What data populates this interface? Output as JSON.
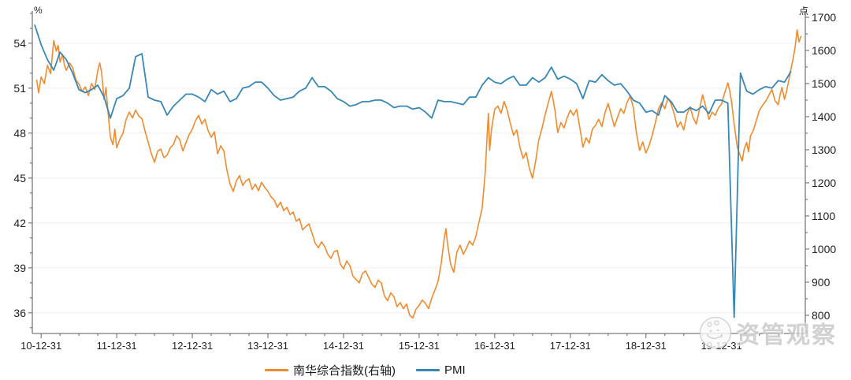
{
  "chart_data": {
    "type": "line",
    "title": "",
    "background": "#ffffff",
    "grid": "horizontal-light",
    "grid_color": "#efefef",
    "axis_color": "#7a7a7a",
    "tick_label_color": "#1f1f1f",
    "left_axis": {
      "unit_label": "%",
      "ticks": [
        36,
        39,
        42,
        45,
        48,
        51,
        54
      ],
      "minor_step": 1,
      "range": [
        34.62,
        56.15
      ]
    },
    "right_axis": {
      "unit_label": "点",
      "ticks": [
        800,
        900,
        1000,
        1100,
        1200,
        1300,
        1400,
        1500,
        1600,
        1700
      ],
      "minor_step": 50,
      "range": [
        745,
        1719
      ]
    },
    "x_axis": {
      "unit": "months since 2010-12-31",
      "range": [
        -1.4,
        121.3
      ],
      "minor_step_months": 3,
      "major_ticks": [
        {
          "t": 0,
          "label": "10-12-31"
        },
        {
          "t": 12,
          "label": "11-12-31"
        },
        {
          "t": 24,
          "label": "12-12-31"
        },
        {
          "t": 36,
          "label": "13-12-31"
        },
        {
          "t": 48,
          "label": "14-12-31"
        },
        {
          "t": 60,
          "label": "15-12-31"
        },
        {
          "t": 72,
          "label": "16-12-31"
        },
        {
          "t": 84,
          "label": "17-12-31"
        },
        {
          "t": 96,
          "label": "18-12-31"
        },
        {
          "t": 108,
          "label": "19-12-31"
        }
      ]
    },
    "legend_position": "bottom-center",
    "series": [
      {
        "id": "nanhua",
        "name": "南华综合指数(右轴)",
        "axis": "right",
        "color": "#F28B2E",
        "stroke_width": 1.6,
        "points": [
          [
            -0.7,
            1510
          ],
          [
            -0.4,
            1472
          ],
          [
            0,
            1520
          ],
          [
            0.5,
            1500
          ],
          [
            1,
            1555
          ],
          [
            1.5,
            1530
          ],
          [
            2,
            1630
          ],
          [
            2.4,
            1598
          ],
          [
            2.7,
            1615
          ],
          [
            3,
            1565
          ],
          [
            3.4,
            1588
          ],
          [
            3.7,
            1555
          ],
          [
            4,
            1540
          ],
          [
            4.5,
            1562
          ],
          [
            5,
            1548
          ],
          [
            5.5,
            1512
          ],
          [
            6,
            1498
          ],
          [
            6.5,
            1476
          ],
          [
            7,
            1490
          ],
          [
            7.5,
            1464
          ],
          [
            8,
            1500
          ],
          [
            8.5,
            1482
          ],
          [
            9,
            1540
          ],
          [
            9.3,
            1562
          ],
          [
            9.6,
            1535
          ],
          [
            10,
            1452
          ],
          [
            10.3,
            1488
          ],
          [
            10.6,
            1418
          ],
          [
            11,
            1338
          ],
          [
            11.4,
            1315
          ],
          [
            11.7,
            1362
          ],
          [
            12,
            1306
          ],
          [
            12.5,
            1332
          ],
          [
            13,
            1350
          ],
          [
            13.5,
            1392
          ],
          [
            14,
            1414
          ],
          [
            14.5,
            1396
          ],
          [
            15,
            1420
          ],
          [
            15.5,
            1402
          ],
          [
            16,
            1394
          ],
          [
            16.5,
            1356
          ],
          [
            17,
            1322
          ],
          [
            17.5,
            1288
          ],
          [
            18,
            1262
          ],
          [
            18.5,
            1296
          ],
          [
            19,
            1302
          ],
          [
            19.5,
            1276
          ],
          [
            20,
            1284
          ],
          [
            20.5,
            1306
          ],
          [
            21,
            1316
          ],
          [
            21.5,
            1342
          ],
          [
            22,
            1330
          ],
          [
            22.5,
            1296
          ],
          [
            23,
            1322
          ],
          [
            23.5,
            1346
          ],
          [
            24,
            1362
          ],
          [
            24.5,
            1388
          ],
          [
            25,
            1404
          ],
          [
            25.5,
            1378
          ],
          [
            26,
            1392
          ],
          [
            26.5,
            1358
          ],
          [
            27,
            1338
          ],
          [
            27.5,
            1354
          ],
          [
            28,
            1288
          ],
          [
            28.5,
            1312
          ],
          [
            29,
            1296
          ],
          [
            29.5,
            1238
          ],
          [
            30,
            1196
          ],
          [
            30.5,
            1174
          ],
          [
            31,
            1206
          ],
          [
            31.5,
            1222
          ],
          [
            32,
            1192
          ],
          [
            32.5,
            1206
          ],
          [
            33,
            1212
          ],
          [
            33.5,
            1180
          ],
          [
            34,
            1196
          ],
          [
            34.5,
            1176
          ],
          [
            35,
            1202
          ],
          [
            35.5,
            1186
          ],
          [
            36,
            1174
          ],
          [
            36.5,
            1158
          ],
          [
            37,
            1148
          ],
          [
            37.5,
            1126
          ],
          [
            38,
            1142
          ],
          [
            38.5,
            1116
          ],
          [
            39,
            1126
          ],
          [
            39.5,
            1104
          ],
          [
            40,
            1112
          ],
          [
            40.5,
            1084
          ],
          [
            41,
            1092
          ],
          [
            41.5,
            1058
          ],
          [
            42,
            1068
          ],
          [
            42.5,
            1076
          ],
          [
            43,
            1048
          ],
          [
            43.5,
            1018
          ],
          [
            44,
            1004
          ],
          [
            44.5,
            1022
          ],
          [
            45,
            1008
          ],
          [
            45.5,
            984
          ],
          [
            46,
            972
          ],
          [
            46.5,
            992
          ],
          [
            47,
            996
          ],
          [
            47.5,
            954
          ],
          [
            48,
            940
          ],
          [
            48.5,
            964
          ],
          [
            49,
            950
          ],
          [
            49.5,
            918
          ],
          [
            50,
            908
          ],
          [
            50.5,
            898
          ],
          [
            51,
            926
          ],
          [
            51.5,
            934
          ],
          [
            52,
            914
          ],
          [
            52.5,
            894
          ],
          [
            53,
            884
          ],
          [
            53.5,
            906
          ],
          [
            54,
            898
          ],
          [
            54.5,
            858
          ],
          [
            55,
            844
          ],
          [
            55.5,
            868
          ],
          [
            56,
            856
          ],
          [
            56.5,
            826
          ],
          [
            57,
            838
          ],
          [
            57.5,
            820
          ],
          [
            58,
            834
          ],
          [
            58.5,
            800
          ],
          [
            59,
            792
          ],
          [
            59.5,
            818
          ],
          [
            60,
            830
          ],
          [
            60.5,
            846
          ],
          [
            61,
            836
          ],
          [
            61.5,
            820
          ],
          [
            62,
            852
          ],
          [
            62.5,
            876
          ],
          [
            63,
            902
          ],
          [
            63.5,
            956
          ],
          [
            64,
            1034
          ],
          [
            64.25,
            1062
          ],
          [
            64.5,
            1018
          ],
          [
            65,
            954
          ],
          [
            65.5,
            930
          ],
          [
            66,
            992
          ],
          [
            66.5,
            1012
          ],
          [
            67,
            984
          ],
          [
            67.5,
            1002
          ],
          [
            68,
            1024
          ],
          [
            68.5,
            1012
          ],
          [
            69,
            1038
          ],
          [
            69.5,
            1082
          ],
          [
            70,
            1124
          ],
          [
            70.5,
            1232
          ],
          [
            70.8,
            1342
          ],
          [
            71,
            1410
          ],
          [
            71.2,
            1298
          ],
          [
            71.5,
            1362
          ],
          [
            72,
            1422
          ],
          [
            72.5,
            1432
          ],
          [
            73,
            1410
          ],
          [
            73.5,
            1446
          ],
          [
            74,
            1418
          ],
          [
            74.5,
            1378
          ],
          [
            75,
            1344
          ],
          [
            75.5,
            1360
          ],
          [
            76,
            1308
          ],
          [
            76.5,
            1274
          ],
          [
            77,
            1292
          ],
          [
            77.5,
            1244
          ],
          [
            78,
            1214
          ],
          [
            78.5,
            1266
          ],
          [
            79,
            1330
          ],
          [
            79.5,
            1364
          ],
          [
            80,
            1406
          ],
          [
            80.5,
            1442
          ],
          [
            81,
            1476
          ],
          [
            81.3,
            1448
          ],
          [
            81.6,
            1414
          ],
          [
            82,
            1352
          ],
          [
            82.5,
            1382
          ],
          [
            83,
            1366
          ],
          [
            83.5,
            1396
          ],
          [
            84,
            1420
          ],
          [
            84.5,
            1404
          ],
          [
            85,
            1422
          ],
          [
            85.5,
            1368
          ],
          [
            86,
            1308
          ],
          [
            86.5,
            1336
          ],
          [
            87,
            1320
          ],
          [
            87.5,
            1362
          ],
          [
            88,
            1374
          ],
          [
            88.5,
            1392
          ],
          [
            89,
            1370
          ],
          [
            89.5,
            1412
          ],
          [
            90,
            1440
          ],
          [
            90.5,
            1404
          ],
          [
            91,
            1370
          ],
          [
            91.5,
            1398
          ],
          [
            92,
            1424
          ],
          [
            92.5,
            1410
          ],
          [
            93,
            1442
          ],
          [
            93.5,
            1462
          ],
          [
            94,
            1428
          ],
          [
            94.5,
            1350
          ],
          [
            95,
            1298
          ],
          [
            95.5,
            1324
          ],
          [
            96,
            1290
          ],
          [
            96.5,
            1312
          ],
          [
            97,
            1344
          ],
          [
            97.5,
            1382
          ],
          [
            98,
            1424
          ],
          [
            98.5,
            1442
          ],
          [
            99,
            1424
          ],
          [
            99.5,
            1456
          ],
          [
            100,
            1438
          ],
          [
            100.5,
            1408
          ],
          [
            101,
            1368
          ],
          [
            101.5,
            1384
          ],
          [
            102,
            1360
          ],
          [
            102.5,
            1406
          ],
          [
            103,
            1430
          ],
          [
            103.5,
            1396
          ],
          [
            104,
            1378
          ],
          [
            104.5,
            1422
          ],
          [
            105,
            1466
          ],
          [
            105.5,
            1430
          ],
          [
            106,
            1392
          ],
          [
            106.5,
            1414
          ],
          [
            107,
            1404
          ],
          [
            107.5,
            1426
          ],
          [
            108,
            1438
          ],
          [
            108.5,
            1472
          ],
          [
            109,
            1502
          ],
          [
            109.3,
            1478
          ],
          [
            109.6,
            1444
          ],
          [
            110,
            1378
          ],
          [
            110.5,
            1308
          ],
          [
            111,
            1280
          ],
          [
            111.3,
            1266
          ],
          [
            111.6,
            1302
          ],
          [
            112,
            1322
          ],
          [
            112.3,
            1294
          ],
          [
            112.6,
            1342
          ],
          [
            113,
            1356
          ],
          [
            113.5,
            1386
          ],
          [
            114,
            1418
          ],
          [
            114.5,
            1434
          ],
          [
            115,
            1446
          ],
          [
            115.5,
            1464
          ],
          [
            116,
            1482
          ],
          [
            116.5,
            1448
          ],
          [
            117,
            1436
          ],
          [
            117.3,
            1466
          ],
          [
            117.6,
            1488
          ],
          [
            118,
            1452
          ],
          [
            118.3,
            1474
          ],
          [
            118.6,
            1502
          ],
          [
            119,
            1542
          ],
          [
            119.4,
            1578
          ],
          [
            119.7,
            1612
          ],
          [
            120,
            1662
          ],
          [
            120.3,
            1626
          ],
          [
            120.6,
            1642
          ]
        ]
      },
      {
        "id": "pmi",
        "name": "PMI",
        "axis": "left",
        "color": "#3787B7",
        "stroke_width": 1.8,
        "t_start": -1,
        "t_step": 1,
        "values": [
          55.2,
          53.9,
          52.9,
          52.2,
          53.4,
          52.9,
          52.0,
          50.9,
          50.7,
          50.9,
          51.2,
          50.4,
          49.0,
          50.3,
          50.5,
          51.0,
          53.1,
          53.3,
          50.4,
          50.2,
          50.1,
          49.2,
          49.8,
          50.2,
          50.6,
          50.6,
          50.4,
          50.1,
          50.9,
          50.6,
          50.8,
          50.1,
          50.3,
          51.0,
          51.1,
          51.4,
          51.4,
          51.0,
          50.5,
          50.2,
          50.3,
          50.4,
          50.8,
          51.0,
          51.7,
          51.1,
          51.1,
          50.8,
          50.3,
          50.1,
          49.8,
          49.9,
          50.1,
          50.1,
          50.2,
          50.2,
          50.0,
          49.7,
          49.8,
          49.8,
          49.6,
          49.7,
          49.4,
          49.0,
          50.2,
          50.1,
          50.1,
          50.0,
          49.9,
          50.4,
          50.4,
          51.2,
          51.7,
          51.4,
          51.3,
          51.6,
          51.8,
          51.2,
          51.2,
          51.7,
          51.4,
          51.7,
          52.4,
          51.6,
          51.8,
          51.6,
          51.3,
          50.3,
          51.5,
          51.4,
          51.9,
          51.5,
          51.2,
          51.3,
          50.8,
          50.2,
          50.0,
          49.4,
          49.5,
          49.2,
          50.5,
          50.1,
          49.4,
          49.4,
          49.7,
          49.5,
          49.8,
          49.3,
          50.2,
          50.2,
          50.0,
          35.7,
          52.0,
          50.8,
          50.6,
          50.9,
          51.1,
          51.0,
          51.5,
          51.4,
          52.1
        ]
      }
    ]
  },
  "watermark": {
    "logo_icon": "wechat-chat-face-logo",
    "text": "资管观察"
  }
}
